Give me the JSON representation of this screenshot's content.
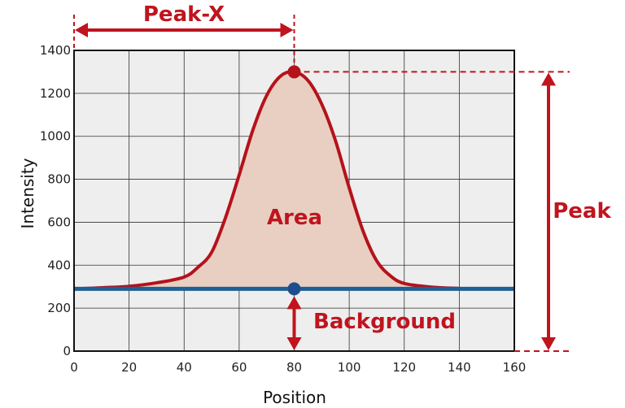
{
  "chart_data": {
    "type": "line",
    "xlabel": "Position",
    "ylabel": "Intensity",
    "xlim": [
      0,
      160
    ],
    "ylim": [
      0,
      1400
    ],
    "x_ticks": [
      0,
      20,
      40,
      60,
      80,
      100,
      120,
      140,
      160
    ],
    "y_ticks": [
      0,
      200,
      400,
      600,
      800,
      1000,
      1200,
      1400
    ],
    "grid": true,
    "series": [
      {
        "type": "line",
        "x": [
          0,
          10,
          20,
          30,
          40,
          45,
          50,
          55,
          60,
          65,
          70,
          75,
          80,
          85,
          90,
          95,
          100,
          105,
          110,
          115,
          120,
          130,
          140,
          150,
          160
        ],
        "y": [
          290,
          295,
          302,
          318,
          345,
          390,
          460,
          620,
          820,
          1030,
          1190,
          1280,
          1300,
          1260,
          1150,
          980,
          760,
          560,
          420,
          350,
          315,
          298,
          292,
          290,
          290
        ]
      },
      {
        "type": "line",
        "x": [
          0,
          160
        ],
        "y": [
          290,
          290
        ]
      }
    ],
    "points": [
      {
        "x": 80,
        "y": 1300,
        "color": "#b5121b"
      },
      {
        "x": 80,
        "y": 290,
        "color": "#1f4e8c"
      }
    ],
    "annotations": {
      "peak_x": "Peak-X",
      "peak": "Peak",
      "area": "Area",
      "background": "Background"
    },
    "colors": {
      "curve": "#b5121b",
      "fill": "#e8cfc2",
      "background_line": "#1f5f96",
      "annotation": "#c0141e",
      "plot_bg": "#eeeeee",
      "grid": "#333333"
    }
  }
}
